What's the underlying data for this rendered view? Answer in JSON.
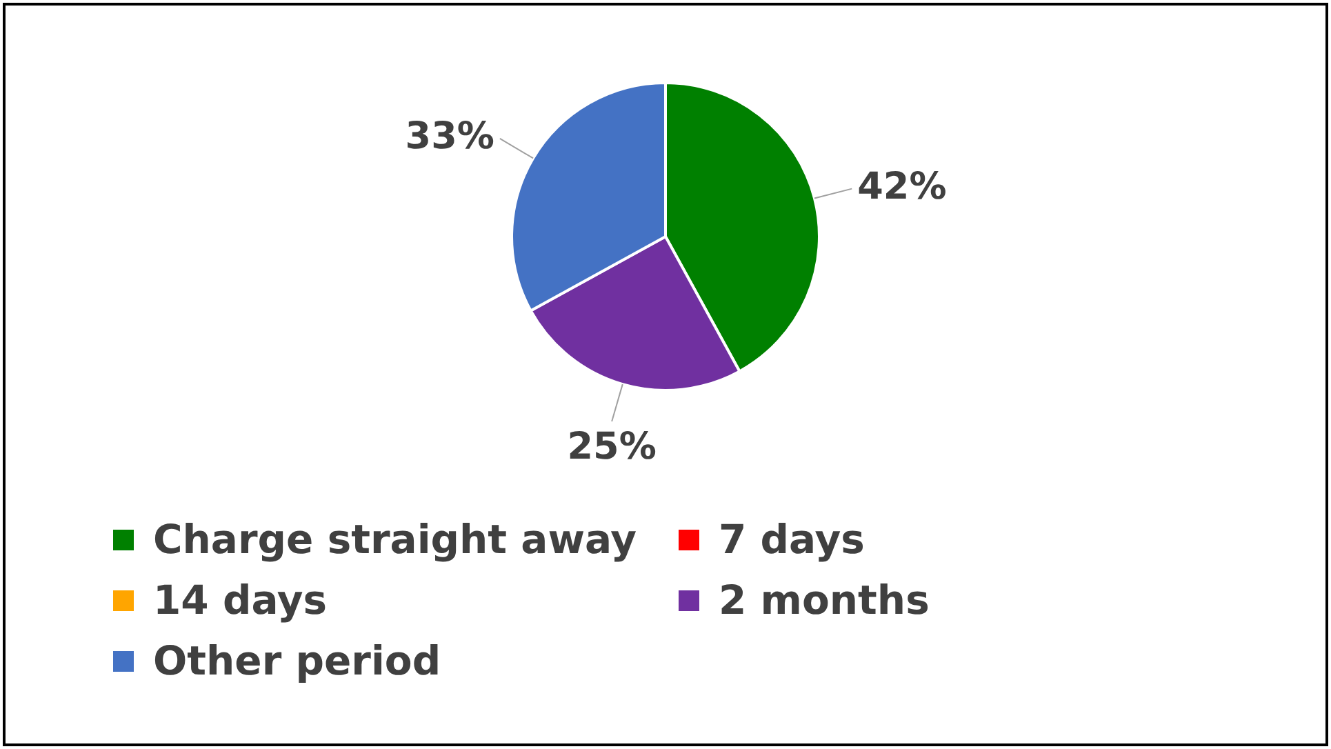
{
  "chart_data": {
    "type": "pie",
    "categories": [
      "Charge straight away",
      "7 days",
      "14 days",
      "2 months",
      "Other period"
    ],
    "values": [
      42,
      0,
      0,
      25,
      33
    ],
    "colors": [
      "#008000",
      "#ff0000",
      "#ffa500",
      "#7030a0",
      "#4472c4"
    ],
    "value_labels": [
      "42%",
      null,
      null,
      "25%",
      "33%"
    ],
    "legend": "bottom"
  }
}
